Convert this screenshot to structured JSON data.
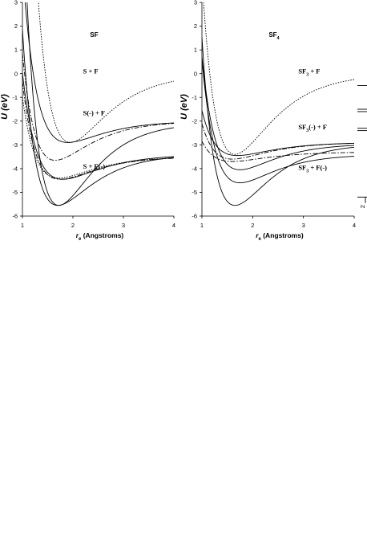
{
  "chart_data": [
    {
      "type": "line",
      "title": "SF",
      "title_sub": "",
      "xlabel_r": "r",
      "xlabel_sub": "e",
      "xlabel_rest": " (Angstroms)",
      "ylabel": "U (eV)",
      "xlim": [
        1,
        4
      ],
      "ylim": [
        -6,
        3
      ],
      "xticks": [
        "1",
        "2",
        "3",
        "4"
      ],
      "yticks": [
        "3",
        "2",
        "1",
        "0",
        "-1",
        "-2",
        "-3",
        "-4",
        "-5",
        "-6"
      ],
      "annotations": [
        {
          "parts": [
            {
              "t": "S + F"
            }
          ],
          "x": 2.2,
          "y": -0.0
        },
        {
          "parts": [
            {
              "t": "S(-) + F"
            }
          ],
          "x": 2.2,
          "y": -1.75
        },
        {
          "parts": [
            {
              "t": "S + F(-)"
            }
          ],
          "x": 2.2,
          "y": -4.0
        }
      ],
      "series": [
        {
          "style": "dotted",
          "re": 1.95,
          "De": 2.9,
          "a": 1.4,
          "Uinf": 0.0
        },
        {
          "style": "solid",
          "re": 1.9,
          "De": 0.9,
          "a": 1.5,
          "Uinf": -2.0
        },
        {
          "style": "dashdot",
          "re": 1.65,
          "De": 1.65,
          "a": 1.5,
          "Uinf": -2.0
        },
        {
          "style": "dashdot",
          "re": 1.75,
          "De": 0.95,
          "a": 1.5,
          "Uinf": -3.5
        },
        {
          "style": "dotted",
          "re": 1.72,
          "De": 0.9,
          "a": 1.5,
          "Uinf": -3.5
        },
        {
          "style": "solid",
          "re": 1.8,
          "De": 1.05,
          "a": 1.4,
          "Uinf": -3.4
        },
        {
          "style": "solid",
          "re": 1.72,
          "De": 3.5,
          "a": 1.5,
          "Uinf": -2.05
        },
        {
          "style": "solid",
          "re": 1.7,
          "De": 2.15,
          "a": 1.5,
          "Uinf": -3.4
        }
      ]
    },
    {
      "type": "line",
      "title": "SF",
      "title_sub": "4",
      "xlabel_r": "r",
      "xlabel_sub": "e",
      "xlabel_rest": " (Angstroms)",
      "ylabel": "U (eV)",
      "xlim": [
        1,
        4
      ],
      "ylim": [
        -6,
        3
      ],
      "xticks": [
        "1",
        "2",
        "3",
        "4"
      ],
      "yticks": [
        "3",
        "2",
        "1",
        "0",
        "-1",
        "-2",
        "-3",
        "-4",
        "-5",
        "-6"
      ],
      "annotations": [
        {
          "parts": [
            {
              "t": "SF"
            },
            {
              "t": "3",
              "sub": true
            },
            {
              "t": " + F"
            }
          ],
          "x": 2.9,
          "y": 0.0
        },
        {
          "parts": [
            {
              "t": "SF"
            },
            {
              "t": "3",
              "sub": true
            },
            {
              "t": "(-) + F"
            }
          ],
          "x": 2.9,
          "y": -2.35
        },
        {
          "parts": [
            {
              "t": "SF"
            },
            {
              "t": "3",
              "sub": true
            },
            {
              "t": " + F(-)"
            }
          ],
          "x": 2.9,
          "y": -4.05
        }
      ],
      "series": [
        {
          "style": "dotted",
          "re": 1.65,
          "De": 3.4,
          "a": 1.4,
          "Uinf": 0.0
        },
        {
          "style": "dashdot",
          "re": 1.6,
          "De": 0.7,
          "a": 1.5,
          "Uinf": -2.9
        },
        {
          "style": "solid",
          "re": 1.7,
          "De": 0.55,
          "a": 1.5,
          "Uinf": -2.9
        },
        {
          "style": "solid",
          "re": 1.75,
          "De": 1.1,
          "a": 1.5,
          "Uinf": -2.95
        },
        {
          "style": "dashdot",
          "re": 1.6,
          "De": 0.4,
          "a": 1.5,
          "Uinf": -3.3
        },
        {
          "style": "solid",
          "re": 1.75,
          "De": 1.2,
          "a": 1.5,
          "Uinf": -3.4
        },
        {
          "style": "solid",
          "re": 1.65,
          "De": 2.6,
          "a": 1.5,
          "Uinf": -2.95
        }
      ]
    }
  ],
  "side_marks": {
    "label": "2",
    "levels": [
      -0.5,
      -1.5,
      -1.6,
      -2.3,
      -2.4,
      -5.2
    ]
  }
}
